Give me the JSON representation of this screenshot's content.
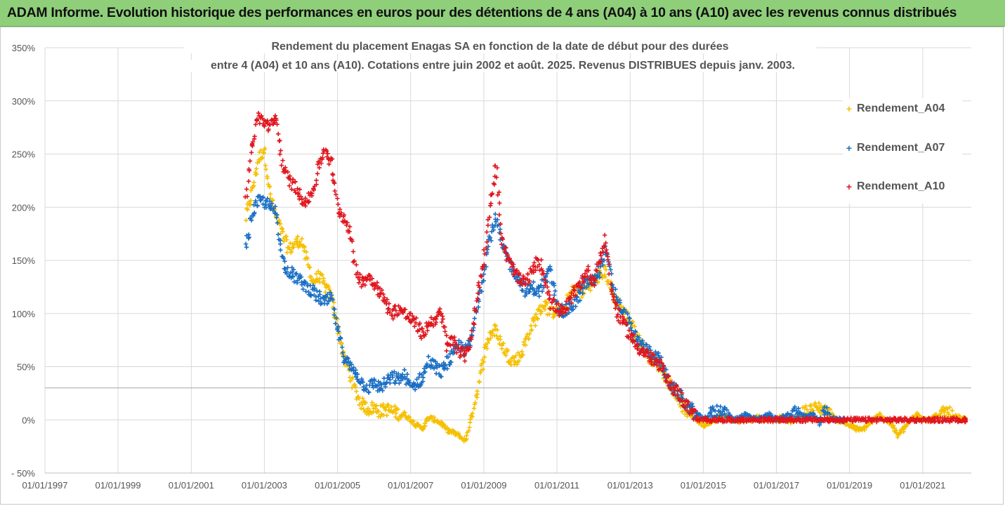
{
  "banner": {
    "title": "ADAM Informe. Evolution historique des performances en euros pour des détentions de 4 ans (A04) à 10 ans (A10) avec les revenus connus distribués"
  },
  "chart_data": {
    "type": "scatter",
    "title_line1": "Rendement du placement Enagas SA en fonction de la date de début pour des durées",
    "title_line2": "entre 4 (A04) et 10 ans (A10). Cotations entre juin 2002 et août. 2025. Revenus DISTRIBUES depuis janv. 2003.",
    "xlabel": "",
    "ylabel": "",
    "xlim": [
      "1997-01-01",
      "2022-05-01"
    ],
    "ylim": [
      -50,
      350
    ],
    "x_tick_labels": [
      "01/01/1997",
      "01/01/1999",
      "01/01/2001",
      "01/01/2003",
      "01/01/2005",
      "01/01/2007",
      "01/01/2009",
      "01/01/2011",
      "01/01/2013",
      "01/01/2015",
      "01/01/2017",
      "01/01/2019",
      "01/01/2021"
    ],
    "y_tick_labels": [
      "- 50%",
      "0%",
      "50%",
      "100%",
      "150%",
      "200%",
      "250%",
      "300%",
      "350%"
    ],
    "y_ticks": [
      -50,
      0,
      50,
      100,
      150,
      200,
      250,
      300,
      350
    ],
    "reference_line_y": 30,
    "grid": true,
    "legend_position": "right",
    "marker": "+",
    "series": [
      {
        "name": "Rendement_A04",
        "color": "#f5c000",
        "x": [
          "2002-07-01",
          "2002-09-01",
          "2002-11-01",
          "2003-01-01",
          "2003-03-01",
          "2003-05-01",
          "2003-07-01",
          "2003-09-01",
          "2003-11-01",
          "2004-01-01",
          "2004-03-01",
          "2004-05-01",
          "2004-07-01",
          "2004-09-01",
          "2004-11-01",
          "2005-01-01",
          "2005-03-01",
          "2005-05-01",
          "2005-07-01",
          "2005-09-01",
          "2005-11-01",
          "2006-01-01",
          "2006-03-01",
          "2006-05-01",
          "2006-07-01",
          "2006-09-01",
          "2006-11-01",
          "2007-01-01",
          "2007-03-01",
          "2007-05-01",
          "2007-07-01",
          "2007-09-01",
          "2007-11-01",
          "2008-01-01",
          "2008-03-01",
          "2008-05-01",
          "2008-07-01",
          "2008-09-01",
          "2008-11-01",
          "2009-01-01",
          "2009-03-01",
          "2009-05-01",
          "2009-07-01",
          "2009-09-01",
          "2009-11-01",
          "2010-01-01",
          "2010-03-01",
          "2010-05-01",
          "2010-07-01",
          "2010-09-01",
          "2010-11-01",
          "2011-01-01",
          "2011-03-01",
          "2011-05-01",
          "2011-07-01",
          "2011-09-01",
          "2011-11-01",
          "2012-01-01",
          "2012-03-01",
          "2012-05-01",
          "2012-07-01",
          "2012-09-01",
          "2012-11-01",
          "2013-01-01",
          "2013-03-01",
          "2013-05-01",
          "2013-07-01",
          "2013-09-01",
          "2013-11-01",
          "2014-01-01",
          "2014-03-01",
          "2014-05-01",
          "2014-07-01",
          "2014-09-01",
          "2014-11-01",
          "2015-01-01",
          "2015-03-01",
          "2015-05-01",
          "2015-07-01",
          "2015-09-01",
          "2015-11-01",
          "2016-01-01",
          "2016-03-01",
          "2016-05-01",
          "2016-07-01",
          "2016-09-01",
          "2016-11-01",
          "2017-01-01",
          "2017-03-01",
          "2017-05-01",
          "2017-07-01",
          "2017-09-01",
          "2017-11-01",
          "2018-01-01",
          "2018-03-01",
          "2018-05-01",
          "2018-07-01",
          "2018-09-01",
          "2018-11-01",
          "2019-01-01",
          "2019-03-01",
          "2019-05-01",
          "2019-07-01",
          "2019-09-01",
          "2019-11-01",
          "2020-01-01",
          "2020-03-01",
          "2020-05-01",
          "2020-07-01",
          "2020-09-01",
          "2020-11-01",
          "2021-01-01",
          "2021-03-01",
          "2021-05-01",
          "2021-07-01",
          "2021-09-01",
          "2021-11-01",
          "2022-01-01",
          "2022-03-01"
        ],
        "y": [
          190,
          215,
          245,
          255,
          210,
          190,
          175,
          160,
          165,
          170,
          150,
          130,
          135,
          125,
          115,
          90,
          60,
          45,
          25,
          15,
          10,
          12,
          8,
          10,
          8,
          6,
          5,
          0,
          -5,
          -8,
          2,
          0,
          -3,
          -10,
          -12,
          -15,
          -20,
          5,
          30,
          60,
          80,
          85,
          70,
          60,
          55,
          60,
          75,
          90,
          100,
          110,
          100,
          105,
          100,
          115,
          125,
          120,
          125,
          130,
          135,
          140,
          120,
          110,
          100,
          95,
          80,
          70,
          60,
          55,
          50,
          40,
          30,
          20,
          10,
          5,
          0,
          -5,
          -2,
          0,
          5,
          2,
          0,
          -2,
          2,
          0,
          3,
          0,
          2,
          0,
          3,
          -2,
          0,
          5,
          8,
          10,
          12,
          8,
          5,
          0,
          -2,
          -5,
          -8,
          -10,
          -5,
          0,
          5,
          0,
          -5,
          -15,
          -8,
          0,
          5,
          2,
          0,
          3,
          5,
          8,
          3,
          2,
          0
        ]
      },
      {
        "name": "Rendement_A07",
        "color": "#1a6fc4",
        "x": [
          "2002-07-01",
          "2002-09-01",
          "2002-11-01",
          "2003-01-01",
          "2003-03-01",
          "2003-05-01",
          "2003-07-01",
          "2003-09-01",
          "2003-11-01",
          "2004-01-01",
          "2004-03-01",
          "2004-05-01",
          "2004-07-01",
          "2004-09-01",
          "2004-11-01",
          "2005-01-01",
          "2005-03-01",
          "2005-05-01",
          "2005-07-01",
          "2005-09-01",
          "2005-11-01",
          "2006-01-01",
          "2006-03-01",
          "2006-05-01",
          "2006-07-01",
          "2006-09-01",
          "2006-11-01",
          "2007-01-01",
          "2007-03-01",
          "2007-05-01",
          "2007-07-01",
          "2007-09-01",
          "2007-11-01",
          "2008-01-01",
          "2008-03-01",
          "2008-05-01",
          "2008-07-01",
          "2008-09-01",
          "2008-11-01",
          "2009-01-01",
          "2009-03-01",
          "2009-05-01",
          "2009-07-01",
          "2009-09-01",
          "2009-11-01",
          "2010-01-01",
          "2010-03-01",
          "2010-05-01",
          "2010-07-01",
          "2010-09-01",
          "2010-11-01",
          "2011-01-01",
          "2011-03-01",
          "2011-05-01",
          "2011-07-01",
          "2011-09-01",
          "2011-11-01",
          "2012-01-01",
          "2012-03-01",
          "2012-05-01",
          "2012-07-01",
          "2012-09-01",
          "2012-11-01",
          "2013-01-01",
          "2013-03-01",
          "2013-05-01",
          "2013-07-01",
          "2013-09-01",
          "2013-11-01",
          "2014-01-01",
          "2014-03-01",
          "2014-05-01",
          "2014-07-01",
          "2014-09-01",
          "2014-11-01",
          "2015-01-01",
          "2015-03-01",
          "2015-05-01",
          "2015-07-01",
          "2015-09-01",
          "2015-11-01",
          "2016-01-01",
          "2016-03-01",
          "2016-05-01",
          "2016-07-01",
          "2016-09-01",
          "2016-11-01",
          "2017-01-01",
          "2017-03-01",
          "2017-05-01",
          "2017-07-01",
          "2017-09-01",
          "2017-11-01",
          "2018-01-01",
          "2018-03-01",
          "2018-05-01",
          "2018-07-01",
          "2018-09-01",
          "2018-11-01"
        ],
        "y": [
          160,
          195,
          205,
          205,
          200,
          195,
          150,
          140,
          135,
          130,
          125,
          120,
          115,
          110,
          115,
          85,
          60,
          50,
          45,
          35,
          30,
          35,
          30,
          35,
          40,
          38,
          42,
          30,
          35,
          40,
          55,
          50,
          45,
          55,
          60,
          70,
          65,
          75,
          110,
          140,
          170,
          190,
          165,
          150,
          140,
          130,
          120,
          125,
          120,
          130,
          140,
          110,
          100,
          105,
          110,
          120,
          130,
          130,
          140,
          160,
          130,
          110,
          100,
          90,
          75,
          70,
          65,
          60,
          55,
          40,
          30,
          25,
          15,
          10,
          5,
          0,
          5,
          8,
          10,
          5,
          0,
          3,
          5,
          2,
          0,
          3,
          5,
          0,
          2,
          5,
          8,
          5,
          3,
          5,
          0,
          8,
          2,
          0,
          0
        ]
      },
      {
        "name": "Rendement_A10",
        "color": "#e0161e",
        "x": [
          "2002-07-01",
          "2002-09-01",
          "2002-11-01",
          "2003-01-01",
          "2003-03-01",
          "2003-05-01",
          "2003-07-01",
          "2003-09-01",
          "2003-11-01",
          "2004-01-01",
          "2004-03-01",
          "2004-05-01",
          "2004-07-01",
          "2004-09-01",
          "2004-11-01",
          "2005-01-01",
          "2005-03-01",
          "2005-05-01",
          "2005-07-01",
          "2005-09-01",
          "2005-11-01",
          "2006-01-01",
          "2006-03-01",
          "2006-05-01",
          "2006-07-01",
          "2006-09-01",
          "2006-11-01",
          "2007-01-01",
          "2007-03-01",
          "2007-05-01",
          "2007-07-01",
          "2007-09-01",
          "2007-11-01",
          "2008-01-01",
          "2008-03-01",
          "2008-05-01",
          "2008-07-01",
          "2008-09-01",
          "2008-11-01",
          "2009-01-01",
          "2009-03-01",
          "2009-05-01",
          "2009-07-01",
          "2009-09-01",
          "2009-11-01",
          "2010-01-01",
          "2010-03-01",
          "2010-05-01",
          "2010-07-01",
          "2010-09-01",
          "2010-11-01",
          "2011-01-01",
          "2011-03-01",
          "2011-05-01",
          "2011-07-01",
          "2011-09-01",
          "2011-11-01",
          "2012-01-01",
          "2012-03-01",
          "2012-05-01",
          "2012-07-01",
          "2012-09-01",
          "2012-11-01",
          "2013-01-01",
          "2013-03-01",
          "2013-05-01",
          "2013-07-01",
          "2013-09-01",
          "2013-11-01",
          "2014-01-01",
          "2014-03-01",
          "2014-05-01",
          "2014-07-01",
          "2014-09-01",
          "2014-11-01",
          "2015-01-01",
          "2015-03-01",
          "2015-05-01",
          "2015-07-01",
          "2015-09-01",
          "2015-11-01",
          "2016-01-01",
          "2016-03-01",
          "2016-05-01",
          "2016-07-01",
          "2016-09-01",
          "2016-11-01",
          "2017-01-01",
          "2017-03-01",
          "2017-05-01",
          "2017-07-01",
          "2017-09-01",
          "2017-11-01",
          "2018-01-01",
          "2018-03-01",
          "2018-05-01",
          "2018-07-01",
          "2018-09-01",
          "2018-11-01",
          "2019-01-01",
          "2019-03-01",
          "2019-05-01",
          "2019-07-01",
          "2019-09-01",
          "2019-11-01",
          "2020-01-01",
          "2020-03-01",
          "2020-05-01",
          "2020-07-01",
          "2020-09-01",
          "2020-11-01",
          "2021-01-01",
          "2021-03-01",
          "2021-05-01",
          "2021-07-01",
          "2021-09-01",
          "2021-11-01",
          "2022-01-01",
          "2022-03-01"
        ],
        "y": [
          210,
          260,
          285,
          280,
          275,
          285,
          240,
          225,
          220,
          210,
          205,
          215,
          240,
          255,
          240,
          200,
          190,
          180,
          140,
          130,
          135,
          130,
          120,
          110,
          100,
          105,
          100,
          95,
          90,
          80,
          90,
          95,
          100,
          70,
          75,
          65,
          60,
          80,
          120,
          150,
          200,
          240,
          170,
          150,
          140,
          130,
          130,
          140,
          150,
          135,
          110,
          105,
          100,
          110,
          120,
          130,
          140,
          130,
          150,
          170,
          120,
          100,
          90,
          80,
          70,
          65,
          60,
          55,
          50,
          40,
          30,
          25,
          15,
          10,
          0,
          0,
          0,
          0,
          0,
          0,
          0,
          0,
          0,
          0,
          0,
          0,
          0,
          0,
          0,
          0,
          0,
          0,
          0,
          0,
          0,
          0,
          0,
          0,
          0,
          0,
          0,
          0,
          0,
          0,
          0,
          0,
          0,
          0,
          0,
          0,
          0,
          0,
          0,
          0,
          0,
          0,
          0,
          0,
          0
        ]
      }
    ]
  }
}
